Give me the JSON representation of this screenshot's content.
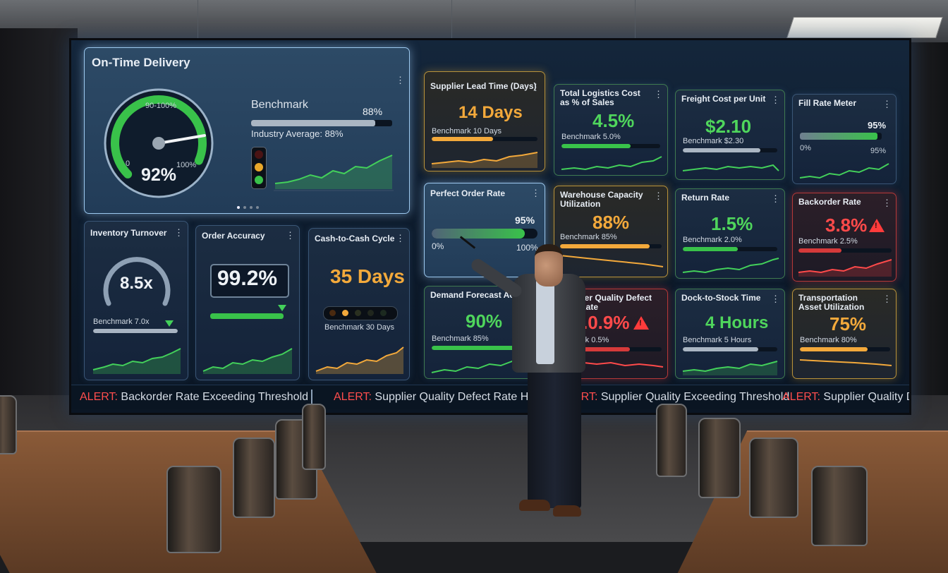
{
  "dashboard": {
    "otd": {
      "title": "On-Time Delivery",
      "gauge_band": "90-100%",
      "gauge_min": "0",
      "gauge_max": "100%",
      "value": "92%",
      "gauge_level": 0.92,
      "benchmark_label": "Benchmark",
      "benchmark_value": "88%",
      "industry_text": "Industry Average: 88%",
      "benchmark_level": 0.88,
      "pager_dots": 4
    },
    "inventory": {
      "title": "Inventory Turnover",
      "value": "8.5x",
      "benchmark": "Benchmark 7.0x"
    },
    "accuracy": {
      "title": "Order Accuracy",
      "value": "99.2%"
    },
    "c2c": {
      "title": "Cash-to-Cash Cycle",
      "value": "35 Days",
      "benchmark": "Benchmark 30 Days"
    },
    "lead_time": {
      "title": "Supplier Lead Time (Days)",
      "value": "14 Days",
      "benchmark": "Benchmark 10 Days"
    },
    "logistics": {
      "title": "Total Logistics Cost as % of Sales",
      "value": "4.5%",
      "benchmark": "Benchmark 5.0%"
    },
    "freight": {
      "title": "Freight Cost per Unit",
      "value": "$2.10",
      "benchmark": "Benchmark $2.30"
    },
    "fill": {
      "title": "Fill Rate Meter",
      "value": "95%",
      "min": "0%",
      "max": "95%"
    },
    "perfect": {
      "title": "Perfect Order Rate",
      "value": "95%",
      "min": "0%",
      "max": "100%"
    },
    "warehouse": {
      "title": "Warehouse Capacity Utilization",
      "value": "88%",
      "benchmark": "Benchmark 85%"
    },
    "return": {
      "title": "Return Rate",
      "value": "1.5%",
      "benchmark": "Benchmark 2.0%"
    },
    "backorder": {
      "title": "Backorder Rate",
      "value": "3.8%",
      "benchmark": "Benchmark 2.5%"
    },
    "forecast": {
      "title": "Demand Forecast Acc",
      "value": "90%",
      "benchmark": "Benchmark 85%"
    },
    "defect": {
      "title": "lier Quality Defect Rate",
      "value": ".0.9%",
      "benchmark": "rk 0.5%"
    },
    "dock": {
      "title": "Dock-to-Stock Time",
      "value": "4 Hours",
      "benchmark": "Benchmark 5 Hours"
    },
    "transport": {
      "title": "Transportation Asset Utilization",
      "value": "75%",
      "benchmark": "Benchmark 80%"
    },
    "menu_glyph": "⋮",
    "alert_glyph": "!"
  },
  "ticker": [
    {
      "label": "ALERT:",
      "text": " Backorder Rate Exceeding Threshold"
    },
    {
      "label": "ALERT:",
      "text": " Supplier Quality Defect Rate High"
    },
    {
      "label": "ERT:",
      "text": " Supplier Quality Exceeding Threshold"
    },
    {
      "label": "ALERT:",
      "text": " Supplier Quality Defec"
    }
  ],
  "colors": {
    "green": "#4fd65c",
    "amber": "#f3a93b",
    "red": "#ff4a4a",
    "screen_bg": "#0d1a2a"
  }
}
